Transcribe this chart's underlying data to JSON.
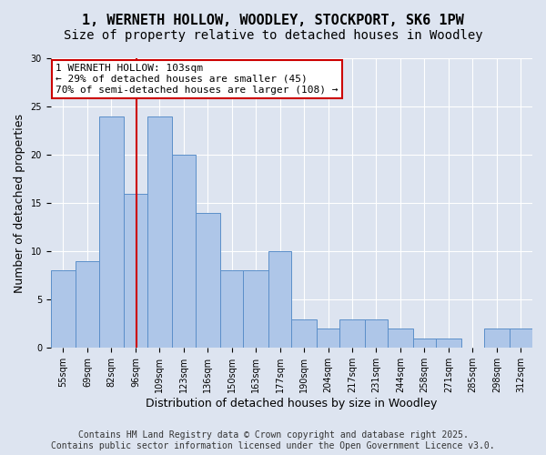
{
  "title_line1": "1, WERNETH HOLLOW, WOODLEY, STOCKPORT, SK6 1PW",
  "title_line2": "Size of property relative to detached houses in Woodley",
  "xlabel": "Distribution of detached houses by size in Woodley",
  "ylabel": "Number of detached properties",
  "footer_line1": "Contains HM Land Registry data © Crown copyright and database right 2025.",
  "footer_line2": "Contains public sector information licensed under the Open Government Licence v3.0.",
  "annotation_line1": "1 WERNETH HOLLOW: 103sqm",
  "annotation_line2": "← 29% of detached houses are smaller (45)",
  "annotation_line3": "70% of semi-detached houses are larger (108) →",
  "property_size": 103,
  "bar_edges": [
    55,
    69,
    82,
    96,
    109,
    123,
    136,
    150,
    163,
    177,
    190,
    204,
    217,
    231,
    244,
    258,
    271,
    285,
    298,
    312,
    325
  ],
  "bar_heights": [
    8,
    9,
    24,
    16,
    24,
    20,
    14,
    8,
    8,
    10,
    3,
    2,
    3,
    3,
    2,
    1,
    1,
    0,
    2,
    2
  ],
  "bar_color": "#aec6e8",
  "bar_edge_color": "#5b8fc9",
  "vline_color": "#cc0000",
  "vline_x": 103,
  "annotation_box_color": "#cc0000",
  "background_color": "#dde4f0",
  "plot_bg_color": "#dde4f0",
  "ylim": [
    0,
    30
  ],
  "yticks": [
    0,
    5,
    10,
    15,
    20,
    25,
    30
  ],
  "title_fontsize": 11,
  "subtitle_fontsize": 10,
  "axis_label_fontsize": 9,
  "tick_fontsize": 7,
  "footer_fontsize": 7,
  "annotation_fontsize": 8
}
